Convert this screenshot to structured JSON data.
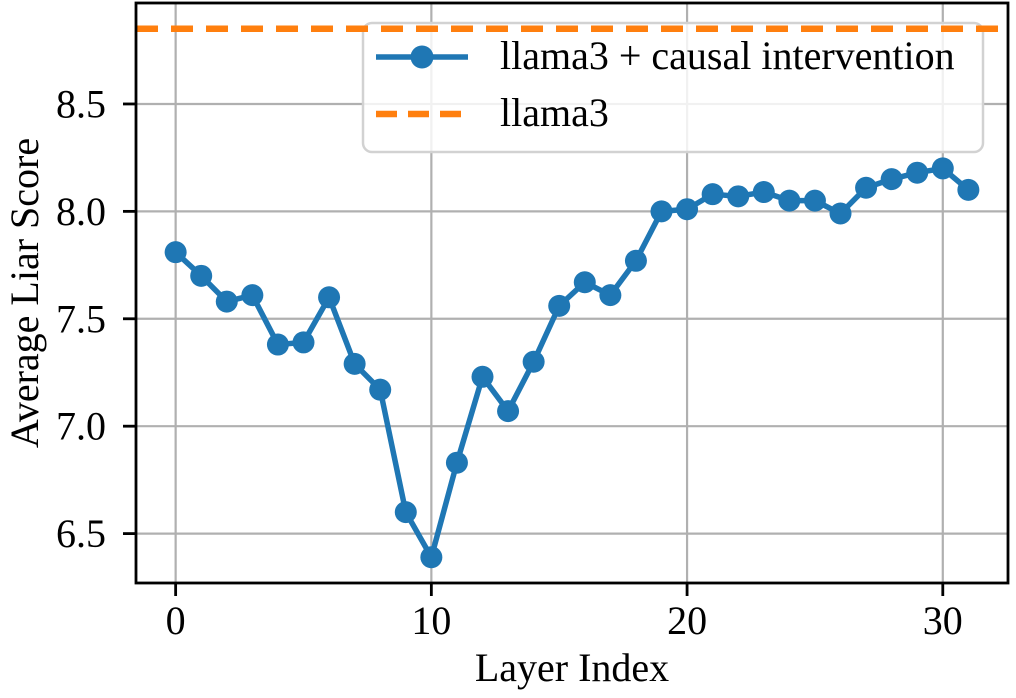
{
  "chart_data": {
    "type": "line",
    "title": "",
    "xlabel": "Layer Index",
    "ylabel": "Average Liar Score",
    "xlim": [
      -1.55,
      32.55
    ],
    "ylim": [
      6.27,
      8.97
    ],
    "xticks": [
      0,
      10,
      20,
      30
    ],
    "xtick_labels": [
      "0",
      "10",
      "20",
      "30"
    ],
    "yticks": [
      6.5,
      7.0,
      7.5,
      8.0,
      8.5
    ],
    "ytick_labels": [
      "6.5",
      "7.0",
      "7.5",
      "8.0",
      "8.5"
    ],
    "grid": true,
    "grid_color": "#b0b0b0",
    "spine_color": "#000000",
    "legend_position": "upper right",
    "series": [
      {
        "name": "llama3 + causal intervention",
        "type": "line",
        "marker": "circle",
        "line_style": "solid",
        "color": "#1f77b4",
        "x": [
          0,
          1,
          2,
          3,
          4,
          5,
          6,
          7,
          8,
          9,
          10,
          11,
          12,
          13,
          14,
          15,
          16,
          17,
          18,
          19,
          20,
          21,
          22,
          23,
          24,
          25,
          26,
          27,
          28,
          29,
          30,
          31
        ],
        "values": [
          7.81,
          7.7,
          7.58,
          7.61,
          7.38,
          7.39,
          7.6,
          7.29,
          7.17,
          6.6,
          6.39,
          6.83,
          7.23,
          7.07,
          7.3,
          7.56,
          7.67,
          7.61,
          7.77,
          8.0,
          8.01,
          8.08,
          8.07,
          8.09,
          8.05,
          8.05,
          7.99,
          8.11,
          8.15,
          8.18,
          8.2,
          8.1
        ]
      },
      {
        "name": "llama3",
        "type": "hline",
        "marker": "none",
        "line_style": "dashed",
        "color": "#ff7f0e",
        "value": 8.85
      }
    ]
  },
  "legend": {
    "border_color": "#d2d2d2",
    "fill_color": "#ffffff"
  }
}
